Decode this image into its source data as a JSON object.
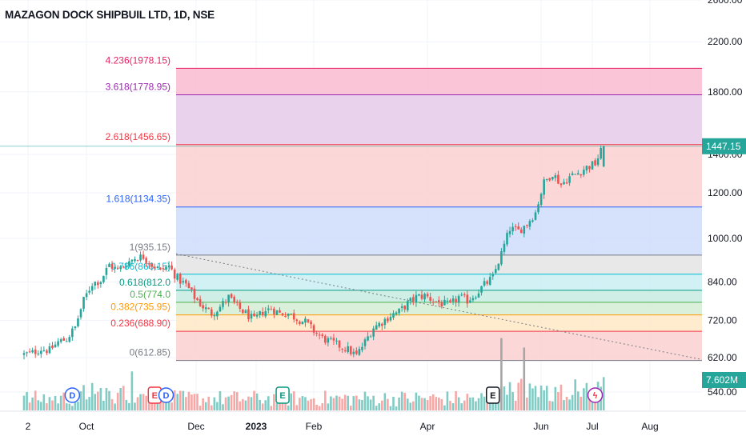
{
  "header": {
    "title": "MAZAGON DOCK SHIPBUIL LTD, 1D, NSE"
  },
  "colors": {
    "up": "#26a69a",
    "down": "#ef5350",
    "vol_up": "#80cbc4",
    "vol_down": "#f7a8a6",
    "price_badge": "#26a69a",
    "volume_badge": "#26a69a"
  },
  "chart_data": {
    "type": "candlestick",
    "title": "MAZAGON DOCK SHIPBUIL LTD, 1D, NSE",
    "y_axis": {
      "scale": "log",
      "side": "right",
      "ticks": [
        540,
        620,
        720,
        840,
        1000,
        1200,
        1400,
        1800,
        2200,
        2600
      ],
      "tick_labels": [
        "540.00",
        "620.00",
        "720.00",
        "840.00",
        "1000.00",
        "1200.00",
        "1400.00",
        "1800.00",
        "2200.00",
        "2600.00"
      ]
    },
    "x_axis": {
      "tick_labels": [
        "2",
        "Oct",
        "Dec",
        "2023",
        "Feb",
        "Apr",
        "Jun",
        "Jul",
        "Aug"
      ]
    },
    "last_price": {
      "value": 1447.15,
      "label": "1447.15"
    },
    "volume_badge": {
      "label": "7.602M"
    },
    "fib_levels": [
      {
        "ratio": "4.236",
        "price": 1978.15,
        "label": "4.236(1978.15)",
        "color": "#e91e63"
      },
      {
        "ratio": "3.618",
        "price": 1778.95,
        "label": "3.618(1778.95)",
        "color": "#9c27b0"
      },
      {
        "ratio": "2.618",
        "price": 1456.65,
        "label": "2.618(1456.65)",
        "color": "#f23645"
      },
      {
        "ratio": "1.618",
        "price": 1134.35,
        "label": "1.618(1134.35)",
        "color": "#2962ff"
      },
      {
        "ratio": "1",
        "price": 935.15,
        "label": "1(935.15)",
        "color": "#787b86"
      },
      {
        "ratio": "0.786",
        "price": 866.15,
        "label": "0.786(866.15)",
        "color": "#00bcd4"
      },
      {
        "ratio": "0.618",
        "price": 812.0,
        "label": "0.618(812.0",
        "color": "#089981"
      },
      {
        "ratio": "0.5",
        "price": 774.0,
        "label": "0.5(774.0",
        "color": "#4caf50"
      },
      {
        "ratio": "0.382",
        "price": 735.95,
        "label": "0.382(735.95)",
        "color": "#ff9800"
      },
      {
        "ratio": "0.236",
        "price": 688.9,
        "label": "0.236(688.90)",
        "color": "#f23645"
      },
      {
        "ratio": "0",
        "price": 612.85,
        "label": "0(612.85)",
        "color": "#787b86"
      }
    ],
    "fib_bands": [
      {
        "from": 1456.65,
        "to": 1978.15,
        "color": "#f8bbd0"
      },
      {
        "from": 1456.65,
        "to": 1778.95,
        "color": "#e6d3ef"
      },
      {
        "from": 1134.35,
        "to": 1456.65,
        "color": "#fbd0d0"
      },
      {
        "from": 935.15,
        "to": 1134.35,
        "color": "#cfdcfb"
      },
      {
        "from": 866.15,
        "to": 935.15,
        "color": "#e4e4e4"
      },
      {
        "from": 812.0,
        "to": 866.15,
        "color": "#c9eef3"
      },
      {
        "from": 774.0,
        "to": 812.0,
        "color": "#c6ebe2"
      },
      {
        "from": 735.95,
        "to": 774.0,
        "color": "#d4edd3"
      },
      {
        "from": 688.9,
        "to": 735.95,
        "color": "#ffe7c6"
      },
      {
        "from": 612.85,
        "to": 688.9,
        "color": "#fbd0d0"
      }
    ],
    "trendline": {
      "from_price": 940,
      "to_price": 615
    },
    "price_path": [
      [
        0,
        628
      ],
      [
        3,
        632
      ],
      [
        6,
        642
      ],
      [
        9,
        638
      ],
      [
        12,
        660
      ],
      [
        15,
        668
      ],
      [
        18,
        700
      ],
      [
        21,
        780
      ],
      [
        24,
        835
      ],
      [
        27,
        845
      ],
      [
        30,
        900
      ],
      [
        33,
        880
      ],
      [
        36,
        905
      ],
      [
        39,
        925
      ],
      [
        42,
        930
      ],
      [
        45,
        900
      ],
      [
        48,
        880
      ],
      [
        51,
        895
      ],
      [
        54,
        850
      ],
      [
        57,
        830
      ],
      [
        60,
        790
      ],
      [
        63,
        760
      ],
      [
        66,
        740
      ],
      [
        69,
        760
      ],
      [
        72,
        790
      ],
      [
        75,
        760
      ],
      [
        78,
        740
      ],
      [
        81,
        720
      ],
      [
        84,
        745
      ],
      [
        87,
        755
      ],
      [
        90,
        740
      ],
      [
        93,
        740
      ],
      [
        96,
        725
      ],
      [
        99,
        715
      ],
      [
        102,
        690
      ],
      [
        105,
        670
      ],
      [
        108,
        660
      ],
      [
        111,
        650
      ],
      [
        114,
        640
      ],
      [
        117,
        625
      ],
      [
        120,
        660
      ],
      [
        123,
        700
      ],
      [
        126,
        715
      ],
      [
        129,
        735
      ],
      [
        132,
        745
      ],
      [
        135,
        770
      ],
      [
        138,
        790
      ],
      [
        141,
        795
      ],
      [
        144,
        780
      ],
      [
        147,
        770
      ],
      [
        150,
        765
      ],
      [
        153,
        790
      ],
      [
        156,
        780
      ],
      [
        159,
        800
      ],
      [
        162,
        830
      ],
      [
        165,
        855
      ],
      [
        168,
        940
      ],
      [
        171,
        1040
      ],
      [
        174,
        1030
      ],
      [
        177,
        1060
      ],
      [
        180,
        1110
      ],
      [
        183,
        1250
      ],
      [
        186,
        1300
      ],
      [
        189,
        1240
      ],
      [
        192,
        1280
      ],
      [
        195,
        1300
      ],
      [
        198,
        1330
      ],
      [
        201,
        1350
      ],
      [
        204,
        1447.15
      ]
    ],
    "volume_spikes": [
      {
        "at": 38,
        "value": 6.2
      },
      {
        "at": 40,
        "value": 2.1
      },
      {
        "at": 168,
        "value": 11.5
      },
      {
        "at": 171,
        "value": 4.5
      },
      {
        "at": 176,
        "value": 10.0
      },
      {
        "at": 179,
        "value": 3.5
      },
      {
        "at": 183,
        "value": 3.2
      }
    ],
    "volume_axis_max": 14,
    "markers": [
      {
        "at": 17,
        "label": "D",
        "kind": "dividend"
      },
      {
        "at": 46,
        "label": "E",
        "kind": "earnings"
      },
      {
        "at": 50,
        "label": "D",
        "kind": "dividend"
      },
      {
        "at": 91,
        "label": "E",
        "kind": "earnings"
      },
      {
        "at": 165,
        "label": "E",
        "kind": "earnings"
      },
      {
        "at": 201,
        "label": "ϟ",
        "kind": "split"
      }
    ],
    "bar_count": 205,
    "grid": true,
    "legend": "none"
  }
}
